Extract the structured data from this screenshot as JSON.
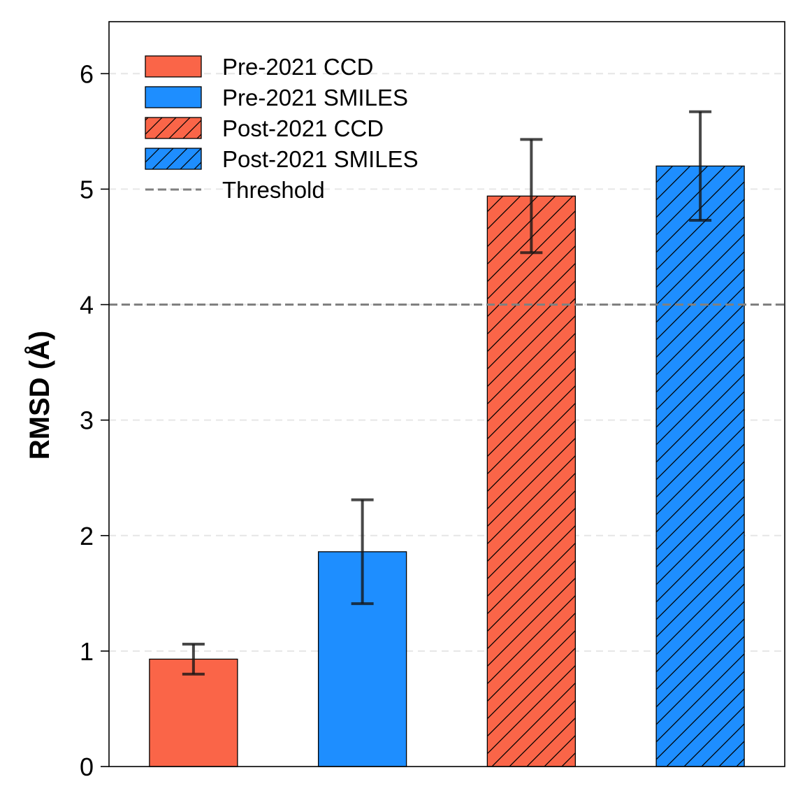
{
  "chart_data": {
    "type": "bar",
    "title": "",
    "xlabel": "",
    "ylabel": "RMSD (Å)",
    "ylim": [
      0,
      6.45
    ],
    "yticks": [
      0,
      1,
      2,
      3,
      4,
      5,
      6
    ],
    "grid": "y-dashed",
    "legend_position": "top-left",
    "threshold": {
      "name": "Threshold",
      "value": 4.0,
      "color": "#808080"
    },
    "series": [
      {
        "name": "Pre-2021 CCD",
        "value": 0.93,
        "error": 0.13,
        "color": "#FA6548",
        "hatch": false
      },
      {
        "name": "Pre-2021 SMILES",
        "value": 1.86,
        "error": 0.45,
        "color": "#1E8EFF",
        "hatch": false
      },
      {
        "name": "Post-2021 CCD",
        "value": 4.94,
        "error": 0.49,
        "color": "#FA6548",
        "hatch": true
      },
      {
        "name": "Post-2021 SMILES",
        "value": 5.2,
        "error": 0.47,
        "color": "#1E8EFF",
        "hatch": true
      }
    ]
  }
}
